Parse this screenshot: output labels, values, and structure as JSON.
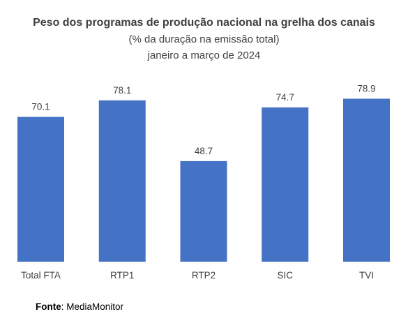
{
  "chart_data": {
    "type": "bar",
    "title": "Peso dos programas de produção nacional na grelha dos canais",
    "subtitle_lines": [
      "(% da duração na emissão total)",
      "janeiro a março de 2024"
    ],
    "categories": [
      "Total FTA",
      "RTP1",
      "RTP2",
      "SIC",
      "TVI"
    ],
    "values": [
      70.1,
      78.1,
      48.7,
      74.7,
      78.9
    ],
    "data_labels": [
      "70.1",
      "78.1",
      "48.7",
      "74.7",
      "78.9"
    ],
    "bar_color": "#4472C4",
    "ylim": [
      0,
      100
    ],
    "grid": false,
    "legend": false,
    "xlabel": "",
    "ylabel": ""
  },
  "source": {
    "label": "Fonte",
    "text": "MediaMonitor"
  }
}
